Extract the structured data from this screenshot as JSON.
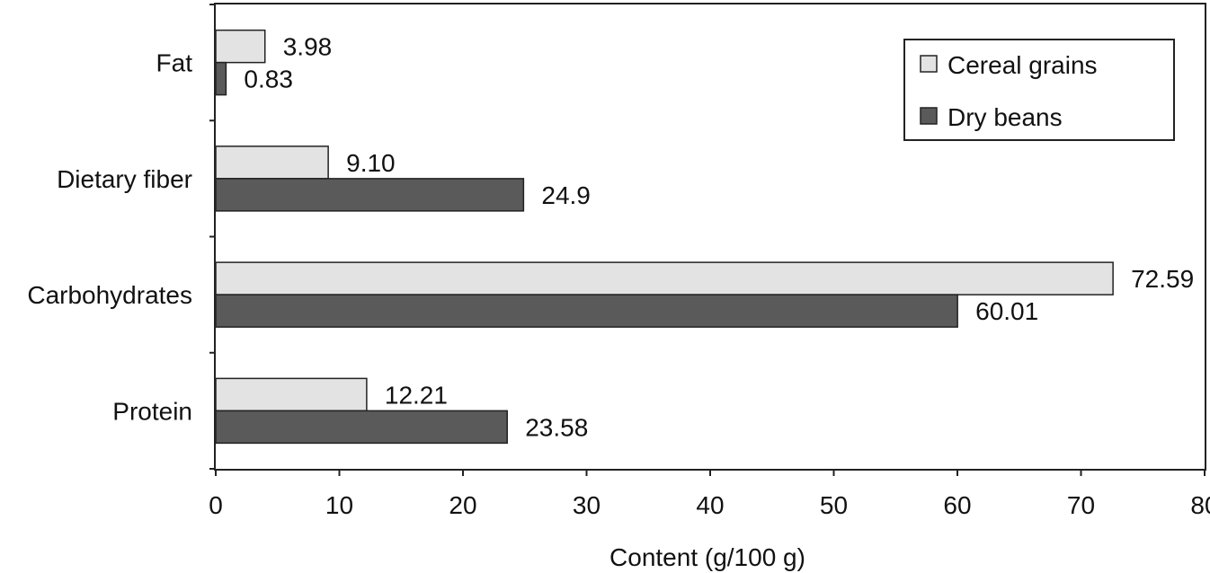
{
  "chart_data": {
    "type": "bar",
    "orientation": "horizontal",
    "categories": [
      "Fat",
      "Dietary fiber",
      "Carbohydrates",
      "Protein"
    ],
    "series": [
      {
        "name": "Cereal grains",
        "values": [
          3.98,
          9.1,
          72.59,
          12.21
        ],
        "labels": [
          "3.98",
          "9.10",
          "72.59",
          "12.21"
        ],
        "color": "#e3e3e3"
      },
      {
        "name": "Dry beans",
        "values": [
          0.83,
          24.9,
          60.01,
          23.58
        ],
        "labels": [
          "0.83",
          "24.9",
          "60.01",
          "23.58"
        ],
        "color": "#5a5a5a"
      }
    ],
    "title": "",
    "xlabel": "Content (g/100 g)",
    "ylabel": "",
    "xlim": [
      0,
      80
    ],
    "xticks": [
      "0",
      "10",
      "20",
      "30",
      "40",
      "50",
      "60",
      "70",
      "80"
    ],
    "grid": false,
    "legend_position": "top-right"
  }
}
